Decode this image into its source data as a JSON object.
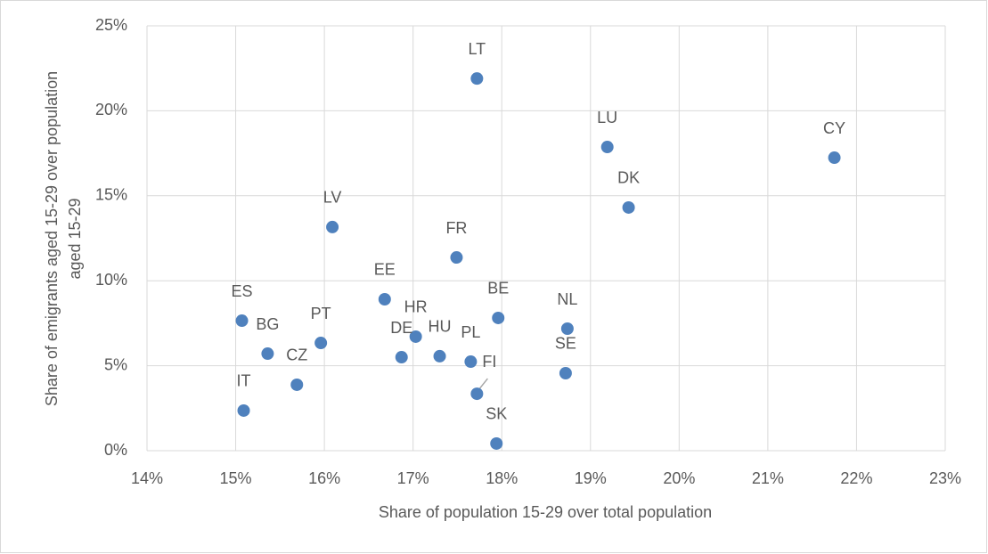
{
  "chart_data": {
    "type": "scatter",
    "xlabel": "Share of population 15-29 over total population",
    "ylabel": "Share of emigrants aged 15-29 over population aged 15-29",
    "color": "#4f81bd",
    "grid": true,
    "xlim": [
      14,
      23
    ],
    "xticks": [
      {
        "value": 14,
        "label": "14%"
      },
      {
        "value": 15,
        "label": "15%"
      },
      {
        "value": 16,
        "label": "16%"
      },
      {
        "value": 17,
        "label": "17%"
      },
      {
        "value": 18,
        "label": "18%"
      },
      {
        "value": 19,
        "label": "19%"
      },
      {
        "value": 20,
        "label": "20%"
      },
      {
        "value": 21,
        "label": "21%"
      },
      {
        "value": 22,
        "label": "22%"
      },
      {
        "value": 23,
        "label": "23%"
      }
    ],
    "ylim": [
      0,
      25
    ],
    "yticks": [
      {
        "value": 0,
        "label": "0%"
      },
      {
        "value": 5,
        "label": "5%"
      },
      {
        "value": 10,
        "label": "10%"
      },
      {
        "value": 15,
        "label": "15%"
      },
      {
        "value": 20,
        "label": "20%"
      },
      {
        "value": 25,
        "label": "25%"
      }
    ],
    "labels": [
      "LT",
      "LU",
      "CY",
      "DK",
      "LV",
      "FR",
      "EE",
      "ES",
      "BE",
      "NL",
      "HR",
      "PT",
      "BG",
      "DE",
      "HU",
      "PL",
      "SE",
      "CZ",
      "FI",
      "IT",
      "SK"
    ],
    "x": [
      17.72,
      19.19,
      21.75,
      19.43,
      16.09,
      17.49,
      16.68,
      15.07,
      17.96,
      18.74,
      17.03,
      15.96,
      15.36,
      16.87,
      17.3,
      17.65,
      18.72,
      15.69,
      17.72,
      15.09,
      17.94
    ],
    "y": [
      21.9,
      17.87,
      17.24,
      14.31,
      13.16,
      11.37,
      8.91,
      7.65,
      7.81,
      7.18,
      6.71,
      6.34,
      5.71,
      5.5,
      5.56,
      5.24,
      4.56,
      3.88,
      3.35,
      2.36,
      0.42
    ]
  }
}
